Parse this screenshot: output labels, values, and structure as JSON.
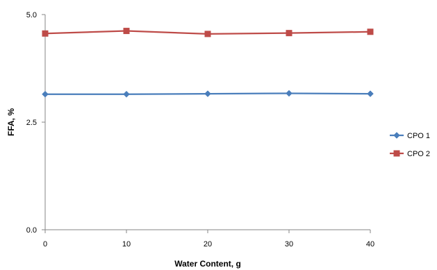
{
  "chart_data": {
    "type": "line",
    "xlabel": "Water Content, g",
    "ylabel": "FFA, %",
    "x": [
      0,
      10,
      20,
      30,
      40
    ],
    "xlim": [
      0,
      40
    ],
    "ylim": [
      0,
      5
    ],
    "x_ticks": [
      "0",
      "10",
      "20",
      "30",
      "40"
    ],
    "y_ticks": [
      "0.0",
      "2.5",
      "5.0"
    ],
    "grid": false,
    "legend_position": "right",
    "series": [
      {
        "name": "CPO 1",
        "color": "#4A7EBB",
        "marker": "diamond",
        "values": [
          3.15,
          3.15,
          3.16,
          3.17,
          3.16
        ]
      },
      {
        "name": "CPO 2",
        "color": "#BE4B48",
        "marker": "square",
        "values": [
          4.56,
          4.62,
          4.55,
          4.57,
          4.6
        ]
      }
    ]
  }
}
